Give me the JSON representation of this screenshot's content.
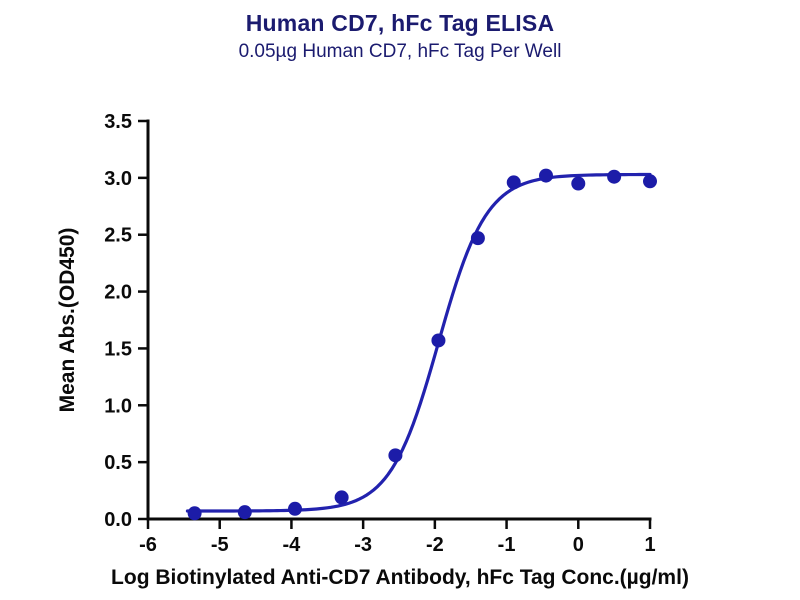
{
  "chart_data": {
    "type": "scatter",
    "title": "Human CD7, hFc Tag ELISA",
    "subtitle": "0.05µg Human CD7, hFc Tag Per Well",
    "xlabel": "Log Biotinylated Anti-CD7 Antibody, hFc Tag Conc.(µg/ml)",
    "ylabel": "Mean Abs.(OD450)",
    "xlim": [
      -6,
      1
    ],
    "ylim": [
      0,
      3.5
    ],
    "x_ticks": [
      -6,
      -5,
      -4,
      -3,
      -2,
      -1,
      0,
      1
    ],
    "y_ticks": [
      0.0,
      0.5,
      1.0,
      1.5,
      2.0,
      2.5,
      3.0,
      3.5
    ],
    "grid": false,
    "legend": "none",
    "points": [
      {
        "x": -5.35,
        "y": 0.05
      },
      {
        "x": -4.65,
        "y": 0.06
      },
      {
        "x": -3.95,
        "y": 0.09
      },
      {
        "x": -3.3,
        "y": 0.19
      },
      {
        "x": -2.55,
        "y": 0.56
      },
      {
        "x": -1.95,
        "y": 1.57
      },
      {
        "x": -1.4,
        "y": 2.47
      },
      {
        "x": -0.9,
        "y": 2.96
      },
      {
        "x": -0.45,
        "y": 3.02
      },
      {
        "x": 0.0,
        "y": 2.95
      },
      {
        "x": 0.5,
        "y": 3.01
      },
      {
        "x": 1.0,
        "y": 2.97
      }
    ],
    "fit_curve": {
      "model": "4PL sigmoid",
      "bottom": 0.07,
      "top": 3.03,
      "log_ec50": -1.95,
      "hill": 1.3,
      "x_start": -5.45,
      "x_end": 1.0
    },
    "colors": {
      "curve": "#2222ae",
      "point": "#1c1ca8",
      "axis": "#0a0a0a",
      "title_text": "#1b1b6f"
    }
  }
}
